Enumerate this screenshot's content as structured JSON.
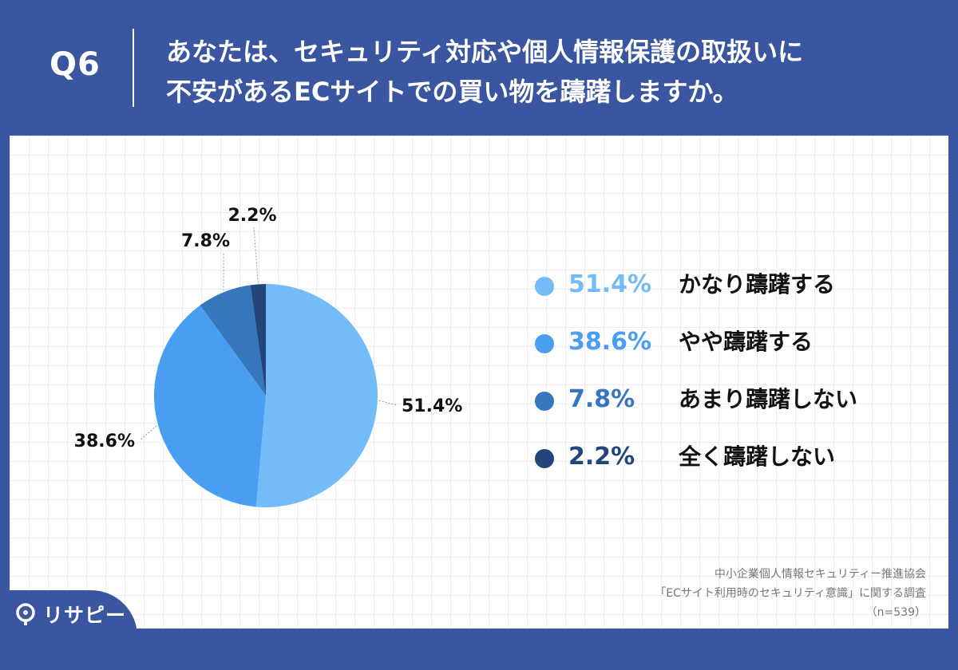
{
  "header": {
    "q_number": "Q6",
    "question_line1": "あなたは、セキュリティ対応や個人情報保護の取扱いに",
    "question_line2": "不安があるECサイトでの買い物を躊躇しますか。"
  },
  "chart_data": {
    "type": "pie",
    "categories": [
      "かなり躊躇する",
      "やや躊躇する",
      "あまり躊躇しない",
      "全く躊躇しない"
    ],
    "values": [
      51.4,
      38.6,
      7.8,
      2.2
    ],
    "value_labels": [
      "51.4%",
      "38.6%",
      "7.8%",
      "2.2%"
    ],
    "colors": [
      "#74bcf8",
      "#4a9ef2",
      "#3576bd",
      "#22467a"
    ],
    "legend_position": "right"
  },
  "source": {
    "line1": "中小企業個人情報セキュリティー推進協会",
    "line2": "「ECサイト利用時のセキュリティ意識」に関する調査",
    "line3": "（n=539）"
  },
  "logo": {
    "icon": "risapi-logo-icon",
    "text": "リサピー"
  }
}
